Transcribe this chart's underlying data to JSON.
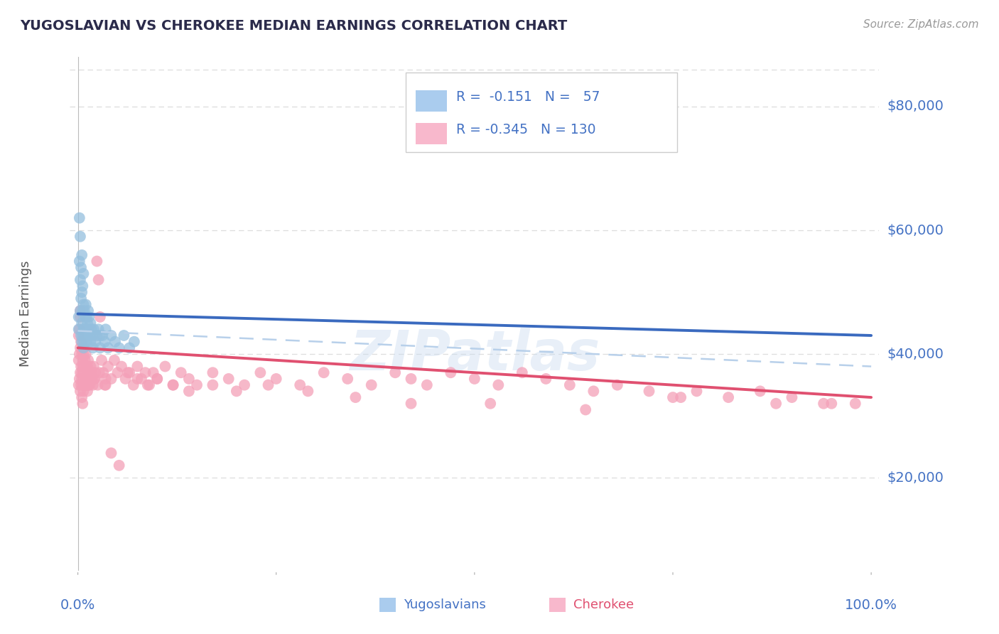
{
  "title": "YUGOSLAVIAN VS CHEROKEE MEDIAN EARNINGS CORRELATION CHART",
  "source": "Source: ZipAtlas.com",
  "ylabel": "Median Earnings",
  "ytick_labels": [
    "$20,000",
    "$40,000",
    "$60,000",
    "$80,000"
  ],
  "ytick_values": [
    20000,
    40000,
    60000,
    80000
  ],
  "ymin": 5000,
  "ymax": 88000,
  "xmin": -0.01,
  "xmax": 1.01,
  "legend_label1": "Yugoslavians",
  "legend_label2": "Cherokee",
  "legend_R1": "R =  -0.151",
  "legend_N1": "N =   57",
  "legend_R2": "R = -0.345",
  "legend_N2": "N = 130",
  "watermark": "ZIPatlas",
  "title_color": "#2b2b4b",
  "source_color": "#999999",
  "axis_color": "#bbbbbb",
  "grid_color": "#dddddd",
  "blue_scatter_color": "#94bfde",
  "pink_scatter_color": "#f4a0b8",
  "trend_blue_color": "#3a6abf",
  "trend_pink_color": "#e05070",
  "trend_dashed_color": "#b8d0ea",
  "blue_legend_color": "#aaccee",
  "pink_legend_color": "#f8b8cc",
  "blue_text_color": "#4472c4",
  "pink_text_color": "#e05070",
  "yugo_x": [
    0.001,
    0.001,
    0.002,
    0.002,
    0.003,
    0.003,
    0.003,
    0.004,
    0.004,
    0.004,
    0.005,
    0.005,
    0.005,
    0.005,
    0.006,
    0.006,
    0.006,
    0.007,
    0.007,
    0.007,
    0.007,
    0.008,
    0.008,
    0.008,
    0.009,
    0.009,
    0.01,
    0.01,
    0.011,
    0.011,
    0.012,
    0.012,
    0.013,
    0.013,
    0.014,
    0.015,
    0.016,
    0.016,
    0.017,
    0.018,
    0.019,
    0.02,
    0.022,
    0.024,
    0.026,
    0.028,
    0.031,
    0.034,
    0.038,
    0.042,
    0.047,
    0.052,
    0.058,
    0.065,
    0.071,
    0.035,
    0.028
  ],
  "yugo_y": [
    46000,
    44000,
    62000,
    55000,
    59000,
    52000,
    47000,
    54000,
    49000,
    43000,
    56000,
    50000,
    45000,
    42000,
    51000,
    47000,
    43000,
    53000,
    48000,
    44000,
    41000,
    47000,
    44000,
    42000,
    46000,
    43000,
    48000,
    44000,
    46000,
    42000,
    45000,
    43000,
    44000,
    47000,
    46000,
    43000,
    45000,
    42000,
    44000,
    43000,
    41000,
    44000,
    42000,
    43000,
    44000,
    41000,
    43000,
    42000,
    41000,
    43000,
    42000,
    41000,
    43000,
    41000,
    42000,
    44000,
    43000
  ],
  "chero_x": [
    0.001,
    0.001,
    0.001,
    0.002,
    0.002,
    0.002,
    0.003,
    0.003,
    0.003,
    0.004,
    0.004,
    0.004,
    0.005,
    0.005,
    0.005,
    0.006,
    0.006,
    0.006,
    0.007,
    0.007,
    0.007,
    0.008,
    0.008,
    0.009,
    0.009,
    0.01,
    0.01,
    0.011,
    0.011,
    0.012,
    0.012,
    0.013,
    0.013,
    0.014,
    0.015,
    0.016,
    0.017,
    0.018,
    0.019,
    0.02,
    0.021,
    0.022,
    0.024,
    0.026,
    0.028,
    0.03,
    0.032,
    0.035,
    0.038,
    0.042,
    0.046,
    0.05,
    0.055,
    0.06,
    0.065,
    0.07,
    0.075,
    0.08,
    0.085,
    0.09,
    0.095,
    0.1,
    0.11,
    0.12,
    0.13,
    0.14,
    0.15,
    0.17,
    0.19,
    0.21,
    0.23,
    0.25,
    0.28,
    0.31,
    0.34,
    0.37,
    0.4,
    0.42,
    0.44,
    0.47,
    0.5,
    0.53,
    0.56,
    0.59,
    0.62,
    0.65,
    0.68,
    0.72,
    0.75,
    0.78,
    0.82,
    0.86,
    0.9,
    0.94,
    0.98,
    0.003,
    0.005,
    0.007,
    0.009,
    0.012,
    0.016,
    0.021,
    0.027,
    0.034,
    0.042,
    0.052,
    0.063,
    0.075,
    0.088,
    0.1,
    0.12,
    0.14,
    0.17,
    0.2,
    0.24,
    0.29,
    0.35,
    0.42,
    0.52,
    0.64,
    0.76,
    0.88,
    0.95,
    0.003,
    0.006,
    0.009,
    0.013,
    0.018,
    0.025,
    0.035
  ],
  "chero_y": [
    43000,
    39000,
    35000,
    44000,
    40000,
    36000,
    41000,
    37000,
    34000,
    42000,
    38000,
    35000,
    40000,
    36000,
    33000,
    39000,
    35000,
    32000,
    41000,
    37000,
    34000,
    38000,
    35000,
    39000,
    35000,
    40000,
    36000,
    38000,
    35000,
    37000,
    34000,
    39000,
    35000,
    37000,
    35000,
    38000,
    36000,
    37000,
    35000,
    38000,
    36000,
    37000,
    55000,
    52000,
    46000,
    39000,
    37000,
    36000,
    38000,
    36000,
    39000,
    37000,
    38000,
    36000,
    37000,
    35000,
    38000,
    36000,
    37000,
    35000,
    37000,
    36000,
    38000,
    35000,
    37000,
    36000,
    35000,
    37000,
    36000,
    35000,
    37000,
    36000,
    35000,
    37000,
    36000,
    35000,
    37000,
    36000,
    35000,
    37000,
    36000,
    35000,
    37000,
    36000,
    35000,
    34000,
    35000,
    34000,
    33000,
    34000,
    33000,
    34000,
    33000,
    32000,
    32000,
    46000,
    37000,
    40000,
    36000,
    38000,
    37000,
    36000,
    37000,
    35000,
    24000,
    22000,
    37000,
    36000,
    35000,
    36000,
    35000,
    34000,
    35000,
    34000,
    35000,
    34000,
    33000,
    32000,
    32000,
    31000,
    33000,
    32000,
    32000,
    47000,
    38000,
    36000,
    35000,
    36000,
    35000,
    35000
  ]
}
